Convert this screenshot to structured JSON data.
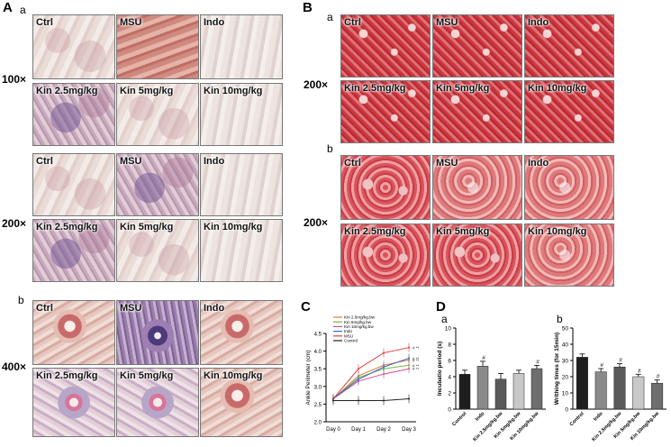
{
  "panel_A": {
    "letter": "A",
    "sub_a": "a",
    "sub_b": "b",
    "mag_100": "100×",
    "mag_200": "200×",
    "mag_400": "400×",
    "labels": [
      "Ctrl",
      "MSU",
      "Indo",
      "Kin 2.5mg/kg",
      "Kin 5mg/kg",
      "Kin 10mg/kg"
    ]
  },
  "panel_B": {
    "letter": "B",
    "sub_a": "a",
    "sub_b": "b",
    "mag_200a": "200×",
    "mag_200b": "200×",
    "labels": [
      "Ctrl",
      "MSU",
      "Indo",
      "Kin 2.5mg/kg",
      "Kin 5mg/kg",
      "Kin 10mg/kg"
    ]
  },
  "panel_C": {
    "letter": "C",
    "legend": [
      "Kin 2.5mg/kg.bw",
      "Kin 5mg/kg.bw",
      "Kin 10mg/kg.bw",
      "Indo",
      "MSU",
      "Control"
    ]
  },
  "panel_D": {
    "letter": "D",
    "sub_a": "a",
    "sub_b": "b"
  },
  "colors": {
    "kin25": "#e07a3a",
    "kin5": "#76b64a",
    "kin10": "#d84c8c",
    "indo": "#3a66c9",
    "msu": "#e23b3b",
    "control": "#222222"
  },
  "chart_data": [
    {
      "type": "line",
      "x": [
        "Day 0",
        "Day 1",
        "Day 2",
        "Day 3"
      ],
      "ylabel": "Ankle Perimeter (cm)",
      "ylim": [
        2.0,
        4.5
      ],
      "yticks": [
        "2.0",
        "2.5",
        "3.0",
        "3.5",
        "4.0",
        "4.5"
      ],
      "series": [
        {
          "name": "Kin 2.5mg/kg.bw",
          "values": [
            2.65,
            3.3,
            3.6,
            3.75
          ],
          "sig": "# **"
        },
        {
          "name": "Kin 5mg/kg.bw",
          "values": [
            2.65,
            3.25,
            3.5,
            3.6
          ],
          "sig": "# **"
        },
        {
          "name": "Kin 10mg/kg.bw",
          "values": [
            2.65,
            3.15,
            3.35,
            3.5
          ],
          "sig": "# **"
        },
        {
          "name": "Indo",
          "values": [
            2.65,
            3.2,
            3.55,
            3.8
          ],
          "sig": "# **"
        },
        {
          "name": "MSU",
          "values": [
            2.65,
            3.5,
            3.95,
            4.1
          ],
          "sig": "# **"
        },
        {
          "name": "Control",
          "values": [
            2.6,
            2.6,
            2.6,
            2.65
          ],
          "sig": ""
        }
      ],
      "grid": false
    },
    {
      "type": "bar",
      "categories": [
        "Control",
        "Indo",
        "Kin 2.5mg/kg.bw",
        "Kin 5mg/kg.bw",
        "Kin 10mg/kg.bw"
      ],
      "values": [
        4.3,
        5.3,
        3.7,
        4.4,
        5.0
      ],
      "errors": [
        0.5,
        0.6,
        0.7,
        0.4,
        0.4
      ],
      "marks": [
        "",
        "#",
        "",
        "",
        "#"
      ],
      "ylabel": "Incubatio period (s)",
      "ylim": [
        0,
        10
      ],
      "yticks": [
        "0",
        "2",
        "4",
        "6",
        "8",
        "10"
      ]
    },
    {
      "type": "bar",
      "categories": [
        "Control",
        "Indo",
        "Kin 2.5mg/kg.bw",
        "Kin 5mg/kg.bw",
        "Kin 10mg/kg.bw"
      ],
      "values": [
        32,
        23,
        26,
        20,
        16
      ],
      "errors": [
        2,
        2,
        2,
        1.5,
        2
      ],
      "marks": [
        "",
        "#",
        "#",
        "#",
        "#"
      ],
      "ylabel": "Writhing times (for 15min)",
      "ylim": [
        0,
        50
      ],
      "yticks": [
        "0",
        "10",
        "20",
        "30",
        "40",
        "50"
      ]
    }
  ]
}
